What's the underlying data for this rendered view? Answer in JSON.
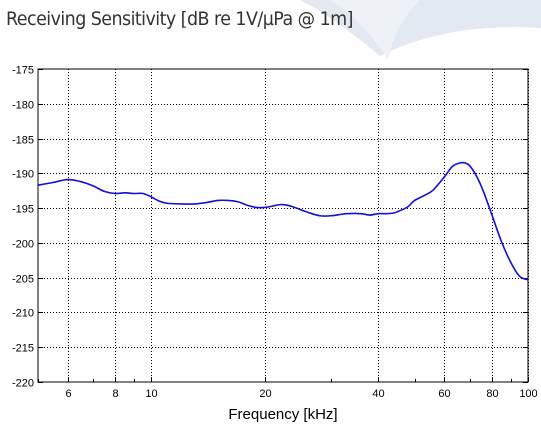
{
  "title": "Receiving Sensitivity [dB re 1V/µPa @ 1m]",
  "colors": {
    "line": "#1010dd",
    "grid": "#000000",
    "text": "#333333",
    "swoosh": "#dfe6ee"
  },
  "chart_data": {
    "type": "line",
    "title": "Receiving Sensitivity [dB re 1V/µPa @ 1m]",
    "xlabel": "Frequency [kHz]",
    "ylabel": "",
    "x_scale": "log",
    "xlim": [
      5,
      100
    ],
    "ylim": [
      -220,
      -175
    ],
    "grid": true,
    "xticks": [
      6,
      8,
      10,
      20,
      40,
      60,
      80,
      100
    ],
    "xtick_labels": [
      "6",
      "8",
      "10",
      "20",
      "40",
      "60",
      "80",
      "100"
    ],
    "yticks": [
      -175,
      -180,
      -185,
      -190,
      -195,
      -200,
      -205,
      -210,
      -215,
      -220
    ],
    "ytick_labels": [
      "-175",
      "-180",
      "-185",
      "-190",
      "-195",
      "-200",
      "-205",
      "-210",
      "-215",
      "-220"
    ],
    "series": [
      {
        "x": [
          5,
          5.5,
          6,
          6.5,
          7,
          7.5,
          8,
          8.5,
          9,
          9.5,
          10,
          10.5,
          11,
          12,
          13,
          14,
          15,
          16,
          17,
          18,
          19,
          20,
          21,
          22,
          23,
          24,
          26,
          28,
          30,
          33,
          36,
          38,
          40,
          42,
          44,
          46,
          48,
          50,
          53,
          56,
          60,
          63,
          66,
          68,
          70,
          73,
          76,
          80,
          85,
          90,
          95,
          100
        ],
        "y": [
          -191.7,
          -191.3,
          -190.9,
          -191.2,
          -191.8,
          -192.6,
          -192.9,
          -192.8,
          -192.9,
          -192.9,
          -193.4,
          -194.0,
          -194.3,
          -194.4,
          -194.4,
          -194.2,
          -193.9,
          -193.9,
          -194.1,
          -194.6,
          -194.9,
          -194.9,
          -194.7,
          -194.5,
          -194.6,
          -194.9,
          -195.6,
          -196.1,
          -196.1,
          -195.8,
          -195.8,
          -196.0,
          -195.8,
          -195.8,
          -195.7,
          -195.3,
          -194.8,
          -193.9,
          -193.2,
          -192.4,
          -190.5,
          -189.0,
          -188.5,
          -188.5,
          -188.9,
          -190.4,
          -192.5,
          -195.8,
          -199.8,
          -202.8,
          -204.8,
          -205.3
        ]
      }
    ]
  }
}
